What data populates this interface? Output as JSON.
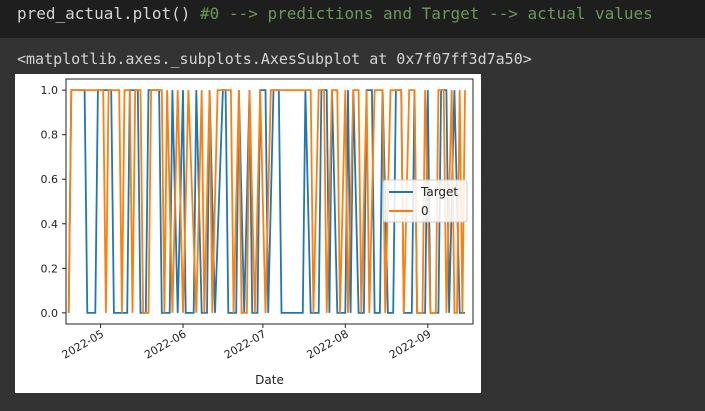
{
  "code": {
    "statement": "pred_actual.plot()",
    "comment": " #0 --> predictions and Target --> actual values"
  },
  "output": {
    "repr": "<matplotlib.axes._subplots.AxesSubplot at 0x7f07ff3d7a50>"
  },
  "colors": {
    "background": "#333333",
    "code_background": "#1e1e1e",
    "comment": "#6a9955",
    "series_target": "#1f77b4",
    "series_zero": "#ff7f0e"
  },
  "chart_data": {
    "type": "line",
    "title": "",
    "xlabel": "Date",
    "ylabel": "",
    "xlim": [
      "2022-04-18",
      "2022-09-18"
    ],
    "ylim": [
      -0.05,
      1.05
    ],
    "yticks": [
      0.0,
      0.2,
      0.4,
      0.6,
      0.8,
      1.0
    ],
    "ytick_labels": [
      "0.0",
      "0.2",
      "0.4",
      "0.6",
      "0.8",
      "1.0"
    ],
    "xticks": [
      "2022-05-01",
      "2022-06-01",
      "2022-07-01",
      "2022-08-01",
      "2022-09-01"
    ],
    "xtick_labels": [
      "2022-05",
      "2022-06",
      "2022-07",
      "2022-08",
      "2022-09"
    ],
    "legend_placement": "center-right",
    "series": [
      {
        "name": "Target",
        "color": "#1f77b4",
        "points": [
          [
            "2022-04-19",
            0
          ],
          [
            "2022-04-20",
            1
          ],
          [
            "2022-04-25",
            1
          ],
          [
            "2022-04-26",
            0
          ],
          [
            "2022-04-29",
            0
          ],
          [
            "2022-04-30",
            1
          ],
          [
            "2022-05-05",
            1
          ],
          [
            "2022-05-06",
            0
          ],
          [
            "2022-05-11",
            0
          ],
          [
            "2022-05-12",
            1
          ],
          [
            "2022-05-15",
            1
          ],
          [
            "2022-05-16",
            0
          ],
          [
            "2022-05-18",
            0
          ],
          [
            "2022-05-19",
            1
          ],
          [
            "2022-05-23",
            1
          ],
          [
            "2022-05-24",
            0
          ],
          [
            "2022-05-27",
            0
          ],
          [
            "2022-05-28",
            1
          ],
          [
            "2022-05-30",
            0
          ],
          [
            "2022-06-01",
            1
          ],
          [
            "2022-06-02",
            0
          ],
          [
            "2022-06-05",
            0
          ],
          [
            "2022-06-06",
            1
          ],
          [
            "2022-06-08",
            0
          ],
          [
            "2022-06-10",
            0
          ],
          [
            "2022-06-11",
            1
          ],
          [
            "2022-06-13",
            0
          ],
          [
            "2022-06-16",
            1
          ],
          [
            "2022-06-17",
            1
          ],
          [
            "2022-06-18",
            0
          ],
          [
            "2022-06-21",
            0
          ],
          [
            "2022-06-22",
            1
          ],
          [
            "2022-06-24",
            0
          ],
          [
            "2022-06-26",
            1
          ],
          [
            "2022-06-27",
            0
          ],
          [
            "2022-06-29",
            0
          ],
          [
            "2022-06-30",
            1
          ],
          [
            "2022-07-02",
            1
          ],
          [
            "2022-07-03",
            0
          ],
          [
            "2022-07-05",
            1
          ],
          [
            "2022-07-07",
            1
          ],
          [
            "2022-07-08",
            0
          ],
          [
            "2022-07-16",
            0
          ],
          [
            "2022-07-17",
            1
          ],
          [
            "2022-07-19",
            0
          ],
          [
            "2022-07-22",
            0
          ],
          [
            "2022-07-23",
            1
          ],
          [
            "2022-07-25",
            1
          ],
          [
            "2022-07-26",
            0
          ],
          [
            "2022-07-27",
            1
          ],
          [
            "2022-07-29",
            0
          ],
          [
            "2022-08-01",
            0
          ],
          [
            "2022-08-02",
            1
          ],
          [
            "2022-08-03",
            0
          ],
          [
            "2022-08-04",
            1
          ],
          [
            "2022-08-06",
            0
          ],
          [
            "2022-08-08",
            0
          ],
          [
            "2022-08-09",
            1
          ],
          [
            "2022-08-11",
            1
          ],
          [
            "2022-08-12",
            0
          ],
          [
            "2022-08-14",
            0
          ],
          [
            "2022-08-15",
            1
          ],
          [
            "2022-08-17",
            0
          ],
          [
            "2022-08-19",
            0
          ],
          [
            "2022-08-20",
            1
          ],
          [
            "2022-08-22",
            1
          ],
          [
            "2022-08-23",
            0
          ],
          [
            "2022-08-26",
            0
          ],
          [
            "2022-08-27",
            1
          ],
          [
            "2022-08-28",
            0
          ],
          [
            "2022-08-31",
            0
          ],
          [
            "2022-09-01",
            1
          ],
          [
            "2022-09-02",
            0
          ],
          [
            "2022-09-05",
            0
          ],
          [
            "2022-09-06",
            1
          ],
          [
            "2022-09-08",
            1
          ],
          [
            "2022-09-09",
            0
          ],
          [
            "2022-09-11",
            1
          ],
          [
            "2022-09-13",
            0
          ],
          [
            "2022-09-15",
            0
          ]
        ]
      },
      {
        "name": "0",
        "color": "#ff7f0e",
        "points": [
          [
            "2022-04-19",
            0
          ],
          [
            "2022-04-20",
            1
          ],
          [
            "2022-05-02",
            1
          ],
          [
            "2022-05-03",
            0
          ],
          [
            "2022-05-04",
            1
          ],
          [
            "2022-05-08",
            1
          ],
          [
            "2022-05-09",
            0
          ],
          [
            "2022-05-10",
            1
          ],
          [
            "2022-05-12",
            1
          ],
          [
            "2022-05-13",
            0
          ],
          [
            "2022-05-14",
            1
          ],
          [
            "2022-05-16",
            1
          ],
          [
            "2022-05-17",
            0
          ],
          [
            "2022-05-19",
            0
          ],
          [
            "2022-05-20",
            1
          ],
          [
            "2022-05-24",
            1
          ],
          [
            "2022-05-25",
            0
          ],
          [
            "2022-05-26",
            1
          ],
          [
            "2022-05-28",
            0
          ],
          [
            "2022-05-30",
            1
          ],
          [
            "2022-06-01",
            0
          ],
          [
            "2022-06-03",
            1
          ],
          [
            "2022-06-06",
            0
          ],
          [
            "2022-06-08",
            1
          ],
          [
            "2022-06-09",
            0
          ],
          [
            "2022-06-11",
            1
          ],
          [
            "2022-06-12",
            0
          ],
          [
            "2022-06-14",
            1
          ],
          [
            "2022-06-19",
            1
          ],
          [
            "2022-06-20",
            0
          ],
          [
            "2022-06-22",
            1
          ],
          [
            "2022-06-23",
            0
          ],
          [
            "2022-06-25",
            0
          ],
          [
            "2022-06-26",
            1
          ],
          [
            "2022-06-28",
            0
          ],
          [
            "2022-06-30",
            1
          ],
          [
            "2022-07-02",
            0
          ],
          [
            "2022-07-04",
            1
          ],
          [
            "2022-07-19",
            1
          ],
          [
            "2022-07-20",
            0
          ],
          [
            "2022-07-22",
            1
          ],
          [
            "2022-07-24",
            1
          ],
          [
            "2022-07-25",
            0
          ],
          [
            "2022-07-27",
            1
          ],
          [
            "2022-07-29",
            1
          ],
          [
            "2022-07-30",
            0
          ],
          [
            "2022-08-01",
            1
          ],
          [
            "2022-08-02",
            0
          ],
          [
            "2022-08-04",
            1
          ],
          [
            "2022-08-06",
            1
          ],
          [
            "2022-08-07",
            0
          ],
          [
            "2022-08-09",
            1
          ],
          [
            "2022-08-10",
            0
          ],
          [
            "2022-08-12",
            1
          ],
          [
            "2022-08-15",
            1
          ],
          [
            "2022-08-16",
            0
          ],
          [
            "2022-08-18",
            1
          ],
          [
            "2022-08-22",
            1
          ],
          [
            "2022-08-23",
            0
          ],
          [
            "2022-08-25",
            1
          ],
          [
            "2022-08-27",
            1
          ],
          [
            "2022-08-28",
            0
          ],
          [
            "2022-08-30",
            0
          ],
          [
            "2022-08-31",
            1
          ],
          [
            "2022-09-02",
            0
          ],
          [
            "2022-09-04",
            0
          ],
          [
            "2022-09-05",
            1
          ],
          [
            "2022-09-07",
            1
          ],
          [
            "2022-09-08",
            0
          ],
          [
            "2022-09-10",
            1
          ],
          [
            "2022-09-11",
            0
          ],
          [
            "2022-09-12",
            0
          ],
          [
            "2022-09-13",
            1
          ],
          [
            "2022-09-14",
            0
          ],
          [
            "2022-09-15",
            1
          ]
        ]
      }
    ]
  }
}
